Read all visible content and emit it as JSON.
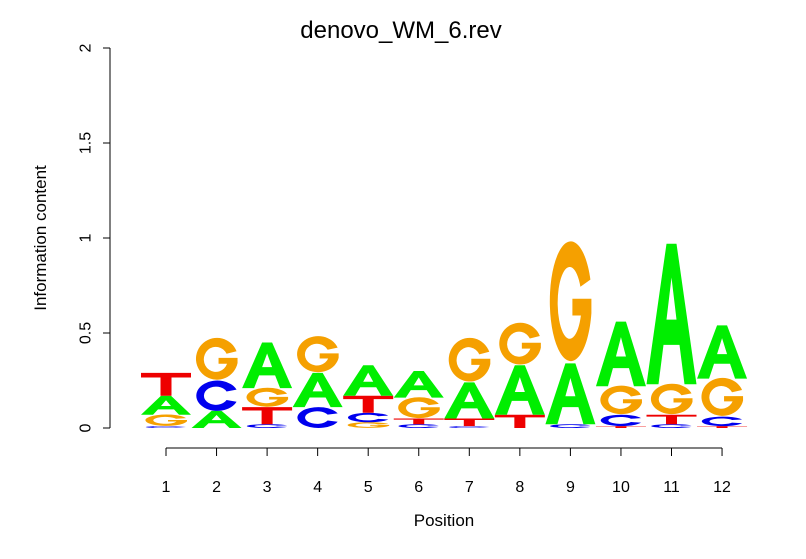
{
  "chart_data": {
    "type": "sequence_logo",
    "title": "denovo_WM_6.rev",
    "xlabel": "Position",
    "ylabel": "Information content",
    "ylim": [
      0,
      2
    ],
    "yticks": [
      "0",
      "0.5",
      "1",
      "1.5",
      "2"
    ],
    "positions": [
      "1",
      "2",
      "3",
      "4",
      "5",
      "6",
      "7",
      "8",
      "9",
      "10",
      "11",
      "12"
    ],
    "colors": {
      "A": "#00ee00",
      "C": "#0000ee",
      "G": "#f5a000",
      "T": "#ee0000"
    },
    "stacks": [
      [
        {
          "letter": "C",
          "height": 0.01
        },
        {
          "letter": "G",
          "height": 0.06
        },
        {
          "letter": "A",
          "height": 0.1
        },
        {
          "letter": "T",
          "height": 0.12
        }
      ],
      [
        {
          "letter": "G",
          "height": 0.0
        },
        {
          "letter": "A",
          "height": 0.09
        },
        {
          "letter": "C",
          "height": 0.16
        },
        {
          "letter": "G",
          "height": 0.22
        }
      ],
      [
        {
          "letter": "C",
          "height": 0.02
        },
        {
          "letter": "T",
          "height": 0.09
        },
        {
          "letter": "G",
          "height": 0.1
        },
        {
          "letter": "A",
          "height": 0.24
        }
      ],
      [
        {
          "letter": "C",
          "height": 0.11
        },
        {
          "letter": "A",
          "height": 0.18
        },
        {
          "letter": "G",
          "height": 0.19
        }
      ],
      [
        {
          "letter": "G",
          "height": 0.03
        },
        {
          "letter": "C",
          "height": 0.05
        },
        {
          "letter": "T",
          "height": 0.09
        },
        {
          "letter": "A",
          "height": 0.16
        }
      ],
      [
        {
          "letter": "C",
          "height": 0.02
        },
        {
          "letter": "T",
          "height": 0.03
        },
        {
          "letter": "G",
          "height": 0.11
        },
        {
          "letter": "A",
          "height": 0.14
        }
      ],
      [
        {
          "letter": "C",
          "height": 0.01
        },
        {
          "letter": "T",
          "height": 0.04
        },
        {
          "letter": "A",
          "height": 0.19
        },
        {
          "letter": "G",
          "height": 0.23
        }
      ],
      [
        {
          "letter": "T",
          "height": 0.07
        },
        {
          "letter": "A",
          "height": 0.26
        },
        {
          "letter": "G",
          "height": 0.22
        }
      ],
      [
        {
          "letter": "C",
          "height": 0.02
        },
        {
          "letter": "A",
          "height": 0.32
        },
        {
          "letter": "G",
          "height": 0.63
        }
      ],
      [
        {
          "letter": "T",
          "height": 0.01
        },
        {
          "letter": "C",
          "height": 0.06
        },
        {
          "letter": "G",
          "height": 0.15
        },
        {
          "letter": "A",
          "height": 0.34
        }
      ],
      [
        {
          "letter": "C",
          "height": 0.02
        },
        {
          "letter": "T",
          "height": 0.05
        },
        {
          "letter": "G",
          "height": 0.16
        },
        {
          "letter": "A",
          "height": 0.74
        }
      ],
      [
        {
          "letter": "T",
          "height": 0.01
        },
        {
          "letter": "C",
          "height": 0.05
        },
        {
          "letter": "G",
          "height": 0.2
        },
        {
          "letter": "A",
          "height": 0.28
        }
      ]
    ]
  }
}
